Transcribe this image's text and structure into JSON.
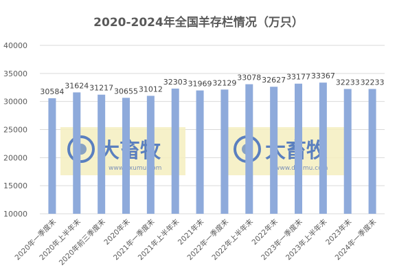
{
  "chart_data": {
    "type": "bar",
    "title": "2020-2024年全国羊存栏情况（万只）",
    "categories": [
      "2020年一季度末",
      "2020年上半年末",
      "2020年前三季度末",
      "2020年末",
      "2021年一季度末",
      "2021年上半年末",
      "2021年末",
      "2022年一季度末",
      "2022年上半年末",
      "2022年末",
      "2023年一季度末",
      "2023年上半年末",
      "2023年末",
      "2024年一季度末"
    ],
    "values": [
      30584,
      31624,
      31217,
      30655,
      31012,
      32303,
      31969,
      32129,
      33078,
      32627,
      33177,
      33367,
      32233,
      32233
    ],
    "ylim": [
      10000,
      40000
    ],
    "yticks": [
      10000,
      15000,
      20000,
      25000,
      30000,
      35000,
      40000
    ],
    "grid": true,
    "bar_color": "#8eaadb",
    "show_data_labels": [
      true,
      true,
      true,
      true,
      true,
      true,
      true,
      true,
      true,
      true,
      true,
      true,
      true,
      true
    ]
  },
  "watermark": {
    "brand": "大畜牧",
    "url": "www.dxumu.com",
    "bg_color": "#f5efc0",
    "count": 2
  }
}
